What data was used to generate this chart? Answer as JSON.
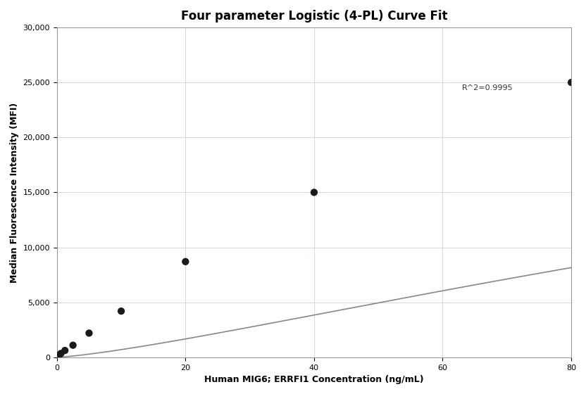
{
  "title": "Four parameter Logistic (4-PL) Curve Fit",
  "xlabel": "Human MIG6; ERRFI1 Concentration (ng/mL)",
  "ylabel": "Median Fluorescence Intensity (MFI)",
  "scatter_x": [
    0.156,
    0.313,
    0.625,
    1.25,
    2.5,
    5.0,
    10.0,
    20.0,
    40.0,
    80.0
  ],
  "scatter_y": [
    120,
    200,
    350,
    620,
    1100,
    2200,
    4200,
    8700,
    15000,
    25000
  ],
  "r2_text": "R^2=0.9995",
  "r2_x": 63,
  "r2_y": 24200,
  "xlim": [
    0,
    80
  ],
  "ylim": [
    0,
    30000
  ],
  "xticks": [
    0,
    20,
    40,
    60,
    80
  ],
  "yticks": [
    0,
    5000,
    10000,
    15000,
    20000,
    25000,
    30000
  ],
  "dot_color": "#1a1a1a",
  "dot_size": 55,
  "line_color": "#888888",
  "background_color": "#ffffff",
  "grid_color": "#d0d8e8",
  "title_fontsize": 12,
  "label_fontsize": 9,
  "tick_fontsize": 8,
  "annotation_fontsize": 8
}
